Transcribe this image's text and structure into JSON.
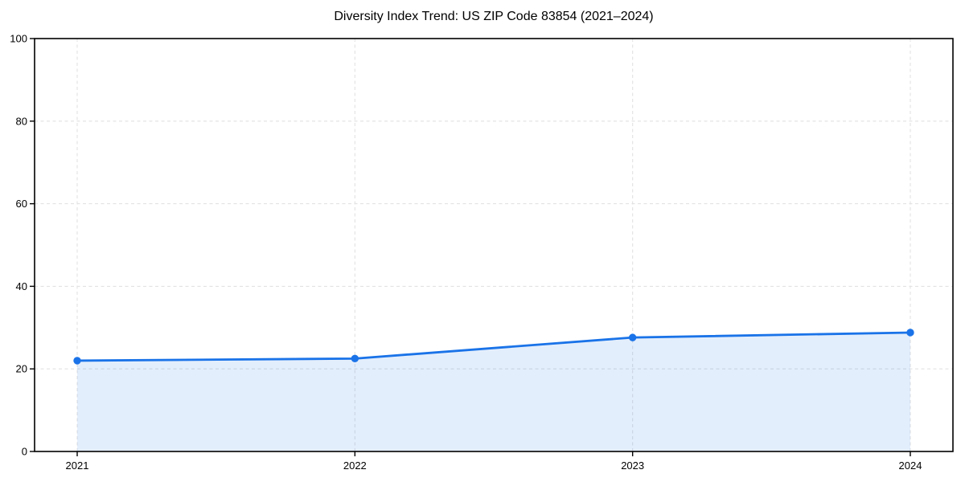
{
  "chart_data": {
    "type": "area",
    "title": "Diversity Index Trend: US ZIP Code 83854 (2021–2024)",
    "categories": [
      "2021",
      "2022",
      "2023",
      "2024"
    ],
    "values": [
      22.0,
      22.5,
      27.6,
      28.8
    ],
    "xlabel": "",
    "ylabel": "",
    "ylim": [
      0,
      100
    ],
    "y_ticks": [
      0,
      20,
      40,
      60,
      80,
      100
    ],
    "grid": "dashed-both-axes",
    "legend": "none",
    "colors": {
      "line": "#1a73e8",
      "marker": "#1a73e8",
      "fill": "#1a73e8",
      "fill_opacity": 0.12,
      "grid": "#e2e2e2",
      "spine": "#000000",
      "tick_text": "#000000"
    }
  }
}
